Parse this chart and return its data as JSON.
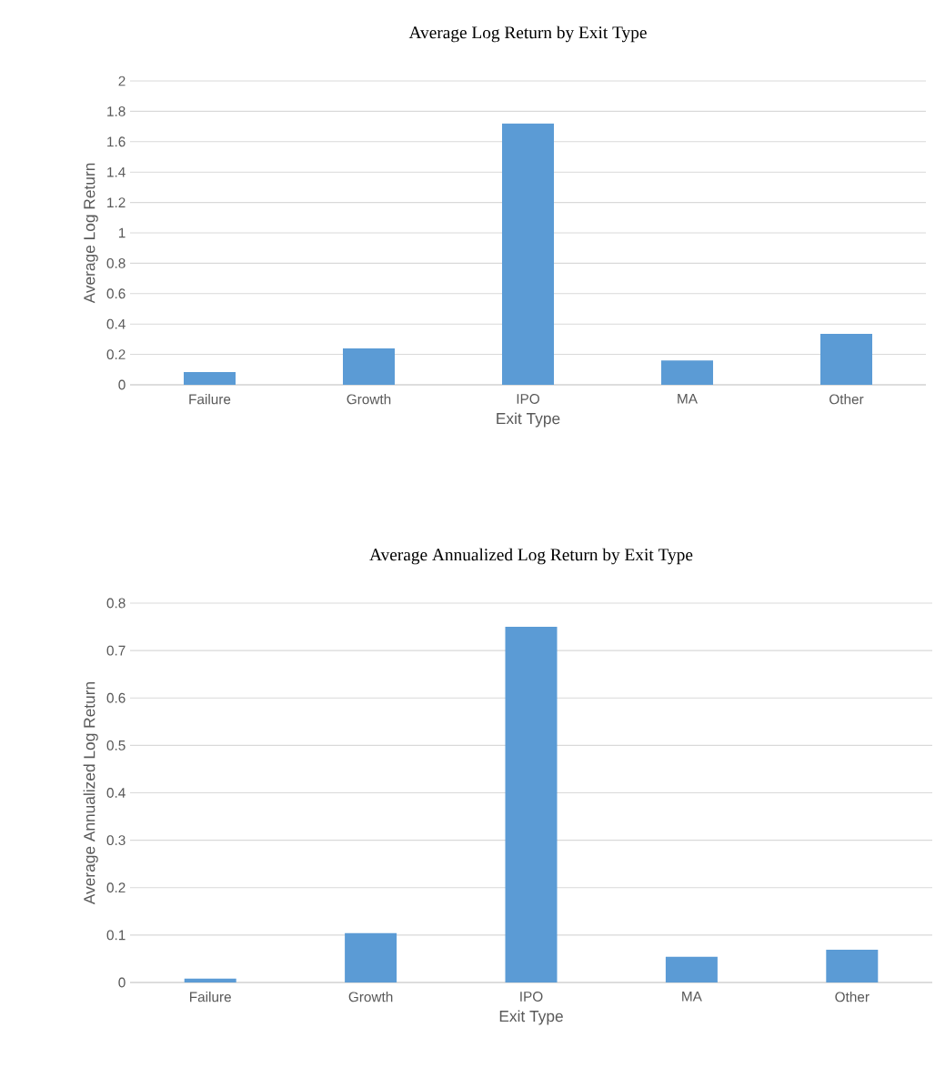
{
  "chart_data": [
    {
      "type": "bar",
      "title": "Average Log Return by Exit Type",
      "xlabel": "Exit Type",
      "ylabel": "Average Log Return",
      "categories": [
        "Failure",
        "Growth",
        "IPO",
        "MA",
        "Other"
      ],
      "values": [
        0.084,
        0.24,
        1.72,
        0.16,
        0.335
      ],
      "color": "#5b9bd5",
      "ylim": [
        0,
        2
      ],
      "yticks": [
        0,
        0.2,
        0.4,
        0.6,
        0.8,
        1,
        1.2,
        1.4,
        1.6,
        1.8,
        2
      ],
      "grid": "y"
    },
    {
      "type": "bar",
      "title": "Average Annualized Log Return by Exit Type",
      "xlabel": "Exit Type",
      "ylabel": "Average Annualized Log Return",
      "categories": [
        "Failure",
        "Growth",
        "IPO",
        "MA",
        "Other"
      ],
      "values": [
        0.008,
        0.104,
        0.75,
        0.054,
        0.069
      ],
      "color": "#5b9bd5",
      "ylim": [
        0,
        0.8
      ],
      "yticks": [
        0,
        0.1,
        0.2,
        0.3,
        0.4,
        0.5,
        0.6,
        0.7,
        0.8
      ],
      "grid": "y"
    }
  ]
}
